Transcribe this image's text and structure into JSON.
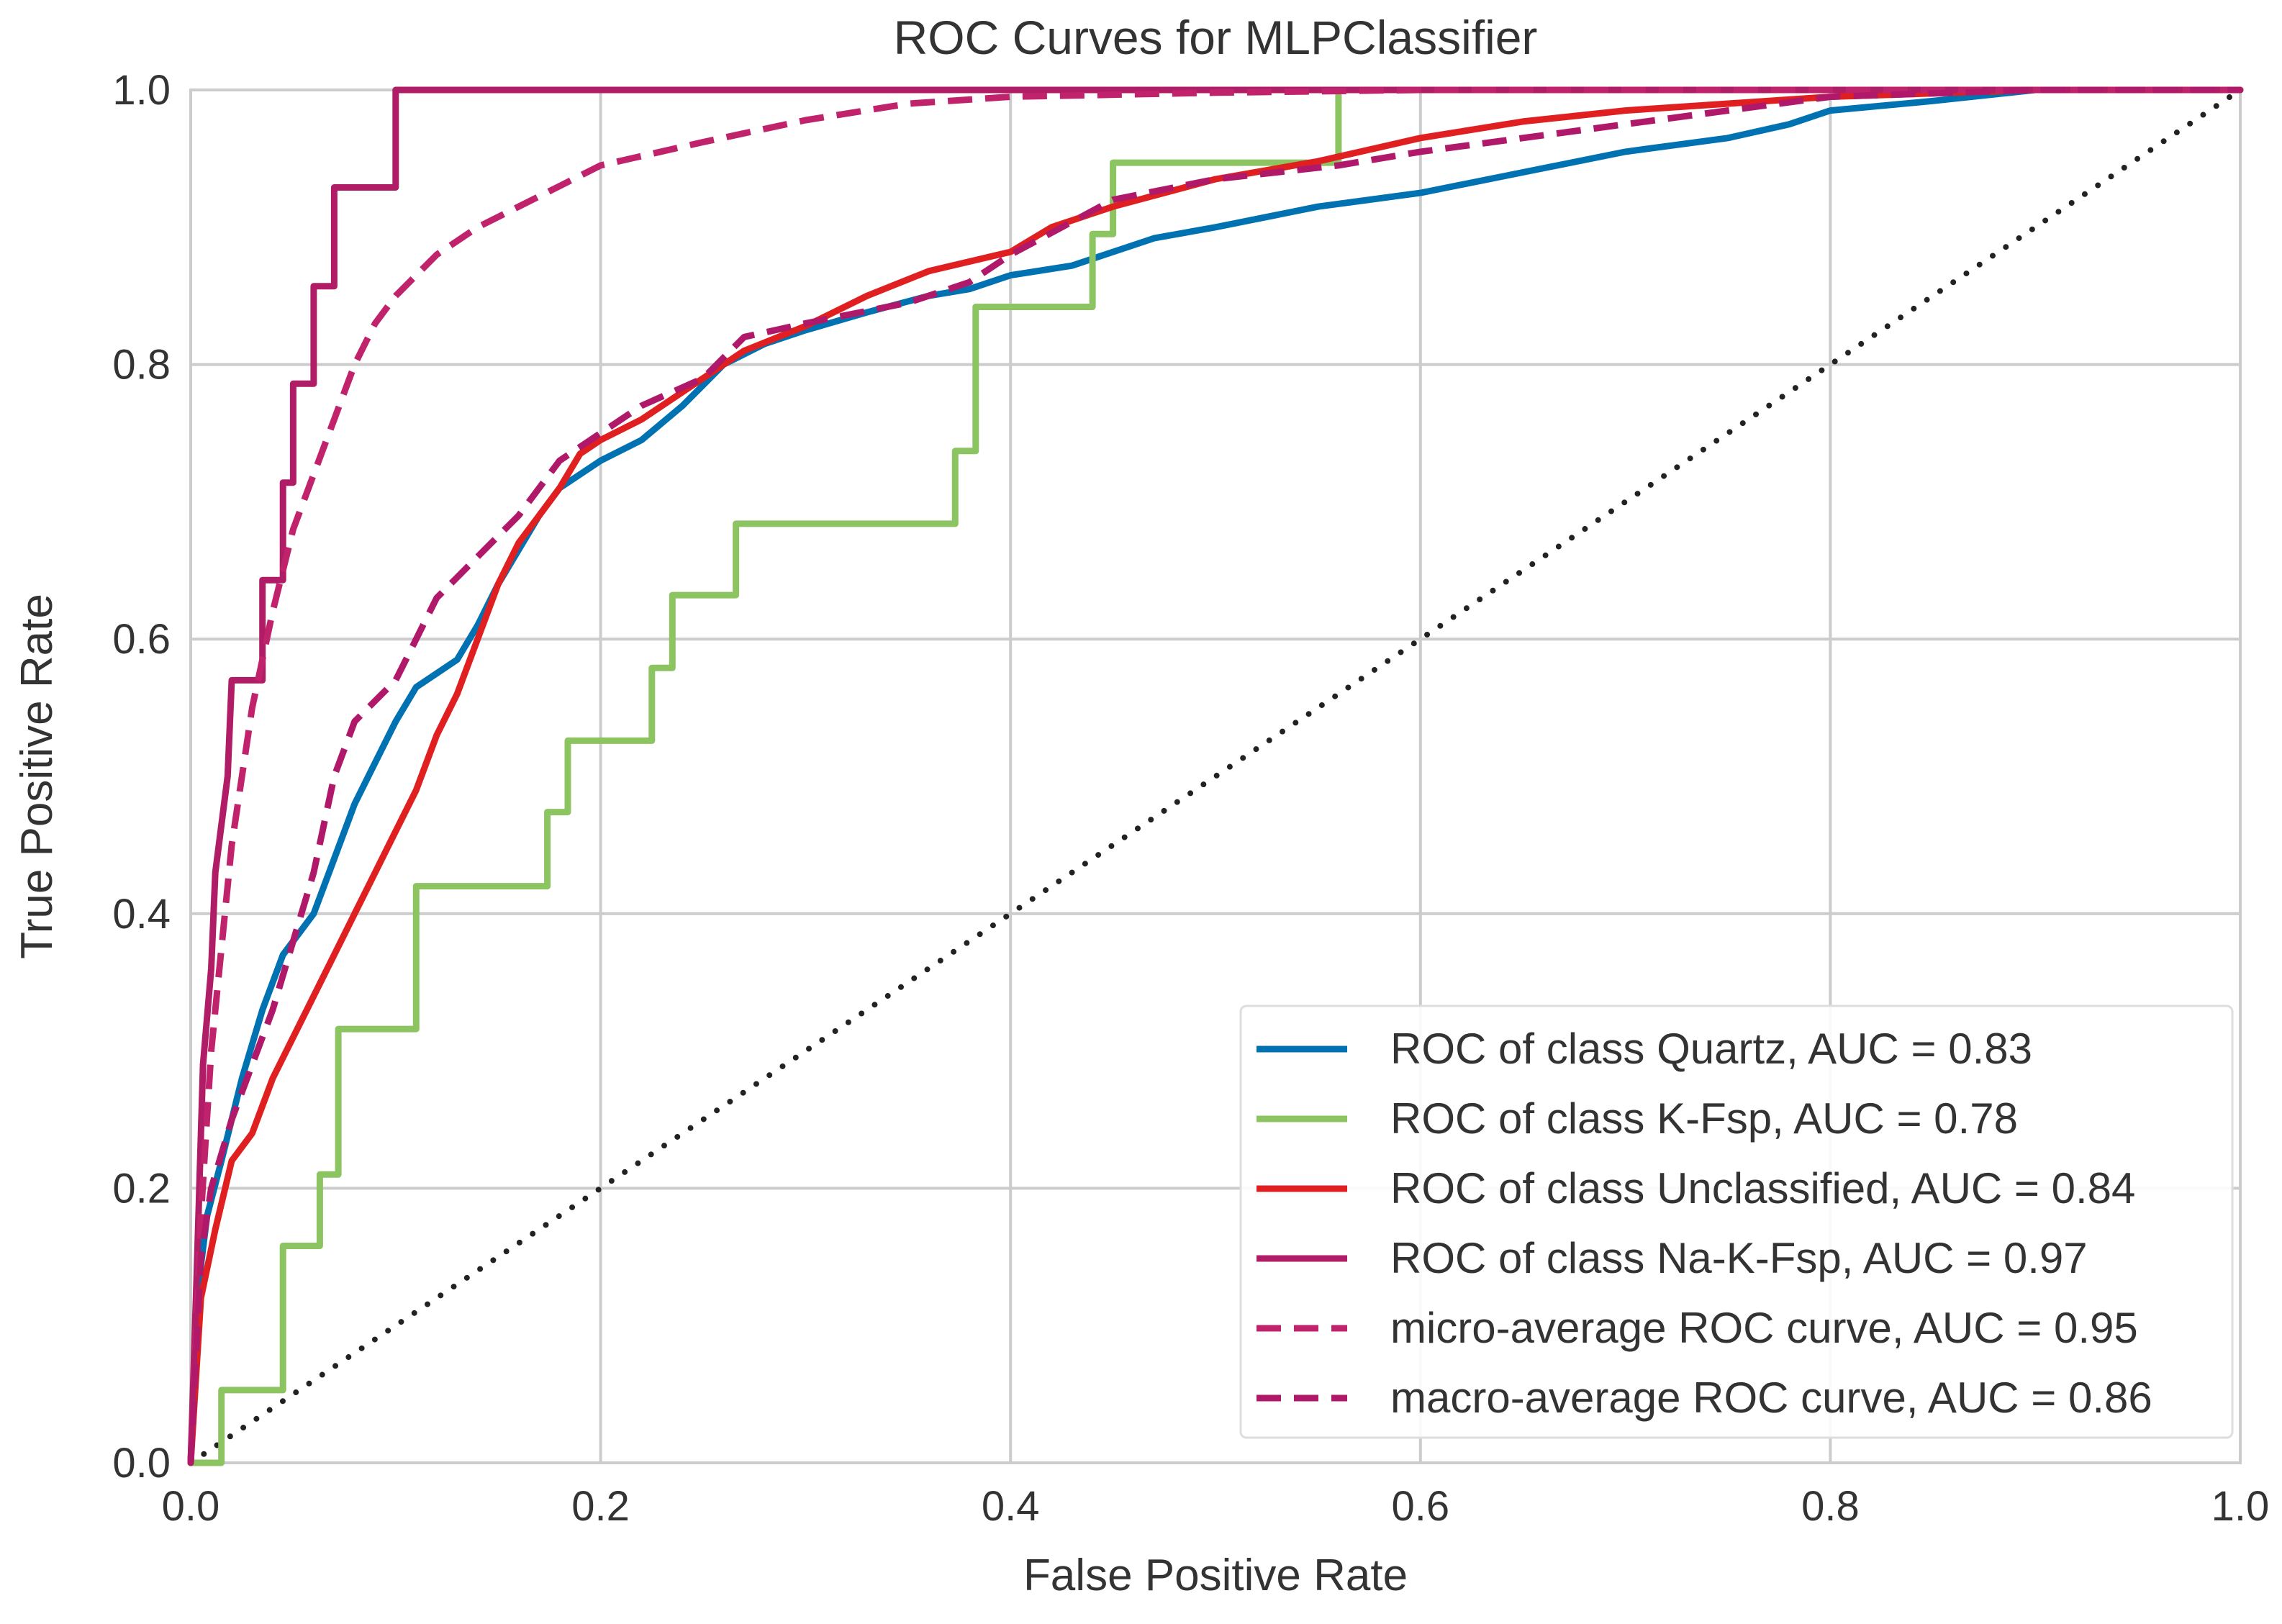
{
  "chart_data": {
    "type": "line",
    "title": "ROC Curves for MLPClassifier",
    "xlabel": "False Positive Rate",
    "ylabel": "True Positive Rate",
    "xlim": [
      0.0,
      1.0
    ],
    "ylim": [
      0.0,
      1.0
    ],
    "grid": true,
    "legend_position": "lower-right",
    "x_ticks": [
      "0.0",
      "0.2",
      "0.4",
      "0.6",
      "0.8",
      "1.0"
    ],
    "y_ticks": [
      "0.0",
      "0.2",
      "0.4",
      "0.6",
      "0.8",
      "1.0"
    ],
    "series": [
      {
        "name": "ROC of class Quartz, AUC = 0.83",
        "color": "#0072b2",
        "style": "solid",
        "points": [
          [
            0.0,
            0.0
          ],
          [
            0.003,
            0.12
          ],
          [
            0.008,
            0.18
          ],
          [
            0.015,
            0.22
          ],
          [
            0.025,
            0.28
          ],
          [
            0.035,
            0.33
          ],
          [
            0.045,
            0.37
          ],
          [
            0.055,
            0.39
          ],
          [
            0.06,
            0.4
          ],
          [
            0.07,
            0.44
          ],
          [
            0.08,
            0.48
          ],
          [
            0.09,
            0.51
          ],
          [
            0.1,
            0.54
          ],
          [
            0.11,
            0.565
          ],
          [
            0.12,
            0.575
          ],
          [
            0.13,
            0.585
          ],
          [
            0.14,
            0.61
          ],
          [
            0.15,
            0.64
          ],
          [
            0.16,
            0.665
          ],
          [
            0.17,
            0.69
          ],
          [
            0.18,
            0.71
          ],
          [
            0.19,
            0.72
          ],
          [
            0.2,
            0.73
          ],
          [
            0.22,
            0.745
          ],
          [
            0.24,
            0.77
          ],
          [
            0.26,
            0.8
          ],
          [
            0.28,
            0.815
          ],
          [
            0.3,
            0.825
          ],
          [
            0.33,
            0.838
          ],
          [
            0.36,
            0.85
          ],
          [
            0.38,
            0.855
          ],
          [
            0.4,
            0.865
          ],
          [
            0.43,
            0.872
          ],
          [
            0.45,
            0.882
          ],
          [
            0.47,
            0.892
          ],
          [
            0.5,
            0.9
          ],
          [
            0.55,
            0.915
          ],
          [
            0.6,
            0.925
          ],
          [
            0.65,
            0.94
          ],
          [
            0.7,
            0.955
          ],
          [
            0.75,
            0.965
          ],
          [
            0.78,
            0.975
          ],
          [
            0.8,
            0.985
          ],
          [
            0.85,
            0.992
          ],
          [
            0.9,
            1.0
          ],
          [
            1.0,
            1.0
          ]
        ]
      },
      {
        "name": "ROC of class K-Fsp, AUC = 0.78",
        "color": "#8cc461",
        "style": "solid",
        "points": [
          [
            0.0,
            0.0
          ],
          [
            0.015,
            0.0
          ],
          [
            0.015,
            0.053
          ],
          [
            0.045,
            0.053
          ],
          [
            0.045,
            0.158
          ],
          [
            0.063,
            0.158
          ],
          [
            0.063,
            0.21
          ],
          [
            0.072,
            0.21
          ],
          [
            0.072,
            0.316
          ],
          [
            0.11,
            0.316
          ],
          [
            0.11,
            0.42
          ],
          [
            0.174,
            0.42
          ],
          [
            0.174,
            0.474
          ],
          [
            0.184,
            0.474
          ],
          [
            0.184,
            0.526
          ],
          [
            0.225,
            0.526
          ],
          [
            0.225,
            0.579
          ],
          [
            0.235,
            0.579
          ],
          [
            0.235,
            0.632
          ],
          [
            0.266,
            0.632
          ],
          [
            0.266,
            0.684
          ],
          [
            0.373,
            0.684
          ],
          [
            0.373,
            0.737
          ],
          [
            0.383,
            0.737
          ],
          [
            0.383,
            0.842
          ],
          [
            0.44,
            0.842
          ],
          [
            0.44,
            0.895
          ],
          [
            0.45,
            0.895
          ],
          [
            0.45,
            0.947
          ],
          [
            0.56,
            0.947
          ],
          [
            0.56,
            1.0
          ],
          [
            1.0,
            1.0
          ]
        ]
      },
      {
        "name": "ROC of class Unclassified, AUC = 0.84",
        "color": "#e02020",
        "style": "solid",
        "points": [
          [
            0.0,
            0.0
          ],
          [
            0.005,
            0.12
          ],
          [
            0.012,
            0.17
          ],
          [
            0.02,
            0.22
          ],
          [
            0.03,
            0.24
          ],
          [
            0.04,
            0.28
          ],
          [
            0.05,
            0.31
          ],
          [
            0.06,
            0.34
          ],
          [
            0.07,
            0.37
          ],
          [
            0.08,
            0.4
          ],
          [
            0.09,
            0.43
          ],
          [
            0.1,
            0.46
          ],
          [
            0.11,
            0.49
          ],
          [
            0.12,
            0.53
          ],
          [
            0.13,
            0.56
          ],
          [
            0.14,
            0.6
          ],
          [
            0.15,
            0.64
          ],
          [
            0.16,
            0.67
          ],
          [
            0.17,
            0.69
          ],
          [
            0.18,
            0.71
          ],
          [
            0.19,
            0.735
          ],
          [
            0.2,
            0.745
          ],
          [
            0.22,
            0.76
          ],
          [
            0.24,
            0.78
          ],
          [
            0.27,
            0.81
          ],
          [
            0.3,
            0.828
          ],
          [
            0.33,
            0.85
          ],
          [
            0.36,
            0.868
          ],
          [
            0.4,
            0.882
          ],
          [
            0.42,
            0.9
          ],
          [
            0.45,
            0.915
          ],
          [
            0.5,
            0.935
          ],
          [
            0.55,
            0.948
          ],
          [
            0.6,
            0.965
          ],
          [
            0.65,
            0.977
          ],
          [
            0.7,
            0.985
          ],
          [
            0.8,
            0.995
          ],
          [
            0.9,
            1.0
          ],
          [
            1.0,
            1.0
          ]
        ]
      },
      {
        "name": "ROC of class Na-K-Fsp, AUC = 0.97",
        "color": "#b01c66",
        "style": "solid",
        "points": [
          [
            0.0,
            0.0
          ],
          [
            0.003,
            0.14
          ],
          [
            0.006,
            0.29
          ],
          [
            0.01,
            0.36
          ],
          [
            0.012,
            0.43
          ],
          [
            0.018,
            0.5
          ],
          [
            0.02,
            0.57
          ],
          [
            0.035,
            0.57
          ],
          [
            0.035,
            0.643
          ],
          [
            0.045,
            0.643
          ],
          [
            0.045,
            0.714
          ],
          [
            0.05,
            0.714
          ],
          [
            0.05,
            0.786
          ],
          [
            0.06,
            0.786
          ],
          [
            0.06,
            0.857
          ],
          [
            0.07,
            0.857
          ],
          [
            0.07,
            0.929
          ],
          [
            0.1,
            0.929
          ],
          [
            0.1,
            1.0
          ],
          [
            1.0,
            1.0
          ]
        ]
      },
      {
        "name": "micro-average ROC curve, AUC = 0.95",
        "color": "#c0236b",
        "style": "dashed",
        "points": [
          [
            0.0,
            0.0
          ],
          [
            0.005,
            0.18
          ],
          [
            0.01,
            0.3
          ],
          [
            0.02,
            0.45
          ],
          [
            0.03,
            0.55
          ],
          [
            0.04,
            0.62
          ],
          [
            0.05,
            0.68
          ],
          [
            0.06,
            0.72
          ],
          [
            0.07,
            0.76
          ],
          [
            0.08,
            0.8
          ],
          [
            0.09,
            0.83
          ],
          [
            0.1,
            0.85
          ],
          [
            0.12,
            0.88
          ],
          [
            0.14,
            0.9
          ],
          [
            0.16,
            0.915
          ],
          [
            0.18,
            0.93
          ],
          [
            0.2,
            0.945
          ],
          [
            0.25,
            0.962
          ],
          [
            0.3,
            0.978
          ],
          [
            0.35,
            0.99
          ],
          [
            0.4,
            0.995
          ],
          [
            0.5,
            0.998
          ],
          [
            0.6,
            1.0
          ],
          [
            1.0,
            1.0
          ]
        ]
      },
      {
        "name": "macro-average ROC curve, AUC = 0.86",
        "color": "#b0196a",
        "style": "dashed",
        "points": [
          [
            0.0,
            0.0
          ],
          [
            0.005,
            0.15
          ],
          [
            0.01,
            0.2
          ],
          [
            0.02,
            0.25
          ],
          [
            0.03,
            0.29
          ],
          [
            0.04,
            0.33
          ],
          [
            0.05,
            0.38
          ],
          [
            0.06,
            0.43
          ],
          [
            0.07,
            0.5
          ],
          [
            0.08,
            0.54
          ],
          [
            0.1,
            0.57
          ],
          [
            0.11,
            0.6
          ],
          [
            0.12,
            0.63
          ],
          [
            0.14,
            0.66
          ],
          [
            0.16,
            0.69
          ],
          [
            0.18,
            0.73
          ],
          [
            0.2,
            0.75
          ],
          [
            0.22,
            0.77
          ],
          [
            0.25,
            0.79
          ],
          [
            0.27,
            0.82
          ],
          [
            0.3,
            0.83
          ],
          [
            0.35,
            0.845
          ],
          [
            0.38,
            0.86
          ],
          [
            0.4,
            0.88
          ],
          [
            0.45,
            0.92
          ],
          [
            0.5,
            0.935
          ],
          [
            0.56,
            0.945
          ],
          [
            0.6,
            0.955
          ],
          [
            0.7,
            0.975
          ],
          [
            0.8,
            0.995
          ],
          [
            0.9,
            1.0
          ],
          [
            1.0,
            1.0
          ]
        ]
      }
    ],
    "diagonal": {
      "color": "#222222",
      "style": "dotted",
      "points": [
        [
          0.0,
          0.0
        ],
        [
          1.0,
          1.0
        ]
      ]
    }
  }
}
